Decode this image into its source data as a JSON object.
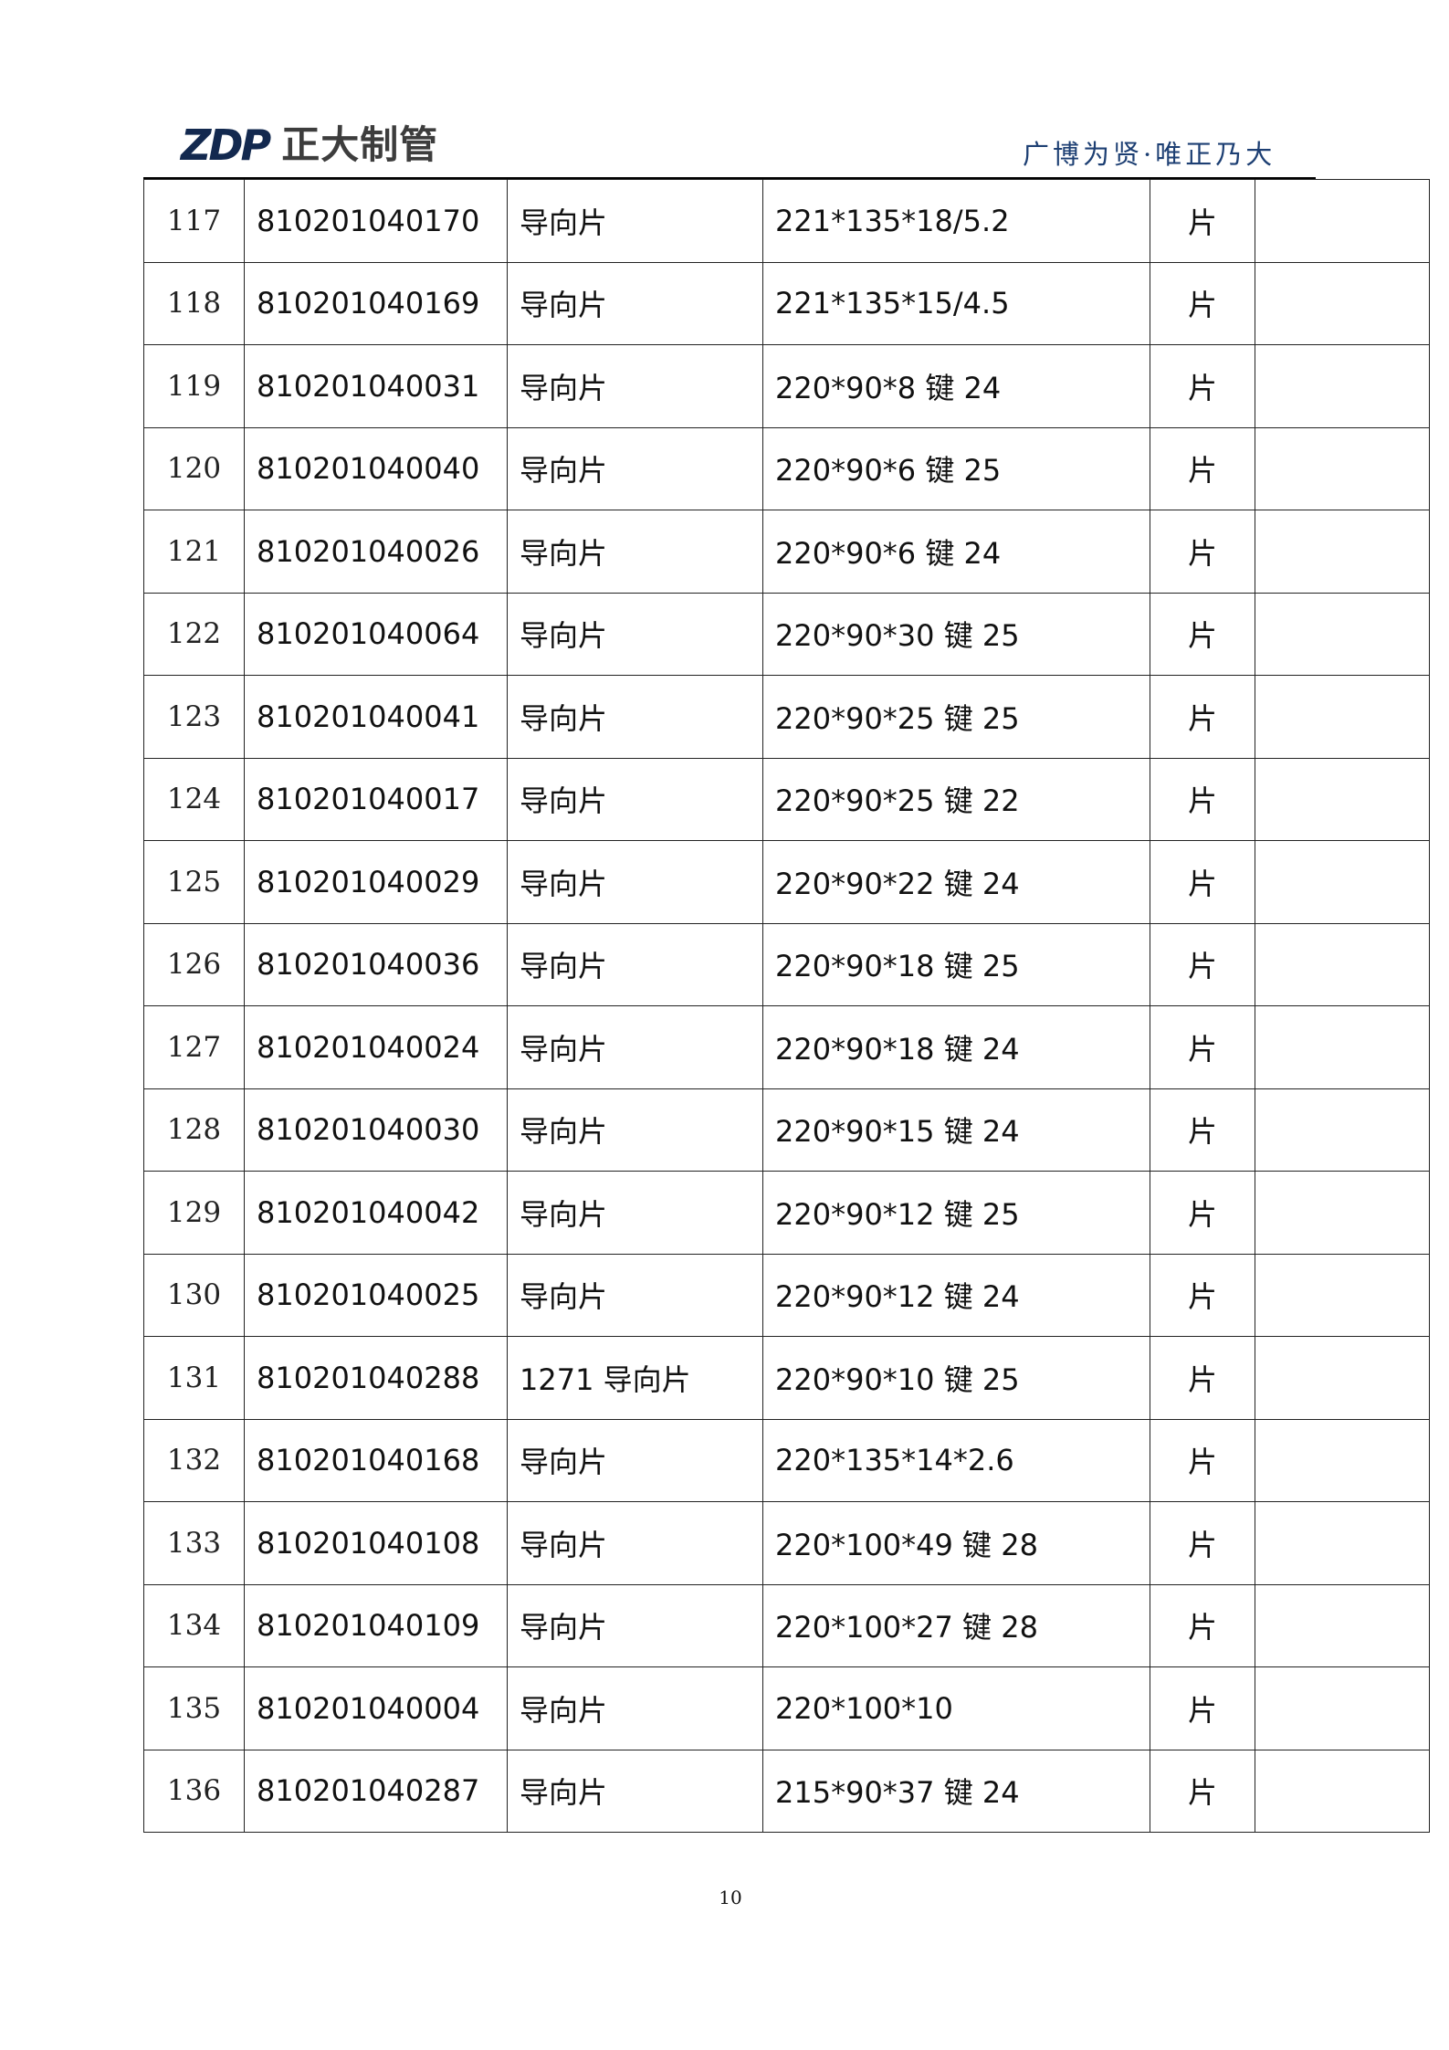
{
  "header": {
    "logo_mark": "ZDP",
    "logo_text": "正大制管",
    "slogan": "广博为贤·唯正乃大",
    "colors": {
      "logo_mark": "#13294f",
      "slogan": "#1d3f73"
    }
  },
  "rows": [
    {
      "no": "117",
      "code": "810201040170",
      "name": "导向片",
      "spec": "221*135*18/5.2",
      "unit": "片",
      "remark": ""
    },
    {
      "no": "118",
      "code": "810201040169",
      "name": "导向片",
      "spec": "221*135*15/4.5",
      "unit": "片",
      "remark": ""
    },
    {
      "no": "119",
      "code": "810201040031",
      "name": "导向片",
      "spec": "220*90*8 键 24",
      "unit": "片",
      "remark": ""
    },
    {
      "no": "120",
      "code": "810201040040",
      "name": "导向片",
      "spec": "220*90*6 键 25",
      "unit": "片",
      "remark": ""
    },
    {
      "no": "121",
      "code": "810201040026",
      "name": "导向片",
      "spec": "220*90*6 键 24",
      "unit": "片",
      "remark": ""
    },
    {
      "no": "122",
      "code": "810201040064",
      "name": "导向片",
      "spec": "220*90*30 键 25",
      "unit": "片",
      "remark": ""
    },
    {
      "no": "123",
      "code": "810201040041",
      "name": "导向片",
      "spec": "220*90*25 键 25",
      "unit": "片",
      "remark": ""
    },
    {
      "no": "124",
      "code": "810201040017",
      "name": "导向片",
      "spec": "220*90*25 键 22",
      "unit": "片",
      "remark": ""
    },
    {
      "no": "125",
      "code": "810201040029",
      "name": "导向片",
      "spec": "220*90*22 键 24",
      "unit": "片",
      "remark": ""
    },
    {
      "no": "126",
      "code": "810201040036",
      "name": "导向片",
      "spec": "220*90*18 键 25",
      "unit": "片",
      "remark": ""
    },
    {
      "no": "127",
      "code": "810201040024",
      "name": "导向片",
      "spec": "220*90*18 键 24",
      "unit": "片",
      "remark": ""
    },
    {
      "no": "128",
      "code": "810201040030",
      "name": "导向片",
      "spec": "220*90*15 键 24",
      "unit": "片",
      "remark": ""
    },
    {
      "no": "129",
      "code": "810201040042",
      "name": "导向片",
      "spec": "220*90*12 键 25",
      "unit": "片",
      "remark": ""
    },
    {
      "no": "130",
      "code": "810201040025",
      "name": "导向片",
      "spec": "220*90*12 键 24",
      "unit": "片",
      "remark": ""
    },
    {
      "no": "131",
      "code": "810201040288",
      "name": "1271 导向片",
      "spec": "220*90*10 键 25",
      "unit": "片",
      "remark": ""
    },
    {
      "no": "132",
      "code": "810201040168",
      "name": "导向片",
      "spec": "220*135*14*2.6",
      "unit": "片",
      "remark": ""
    },
    {
      "no": "133",
      "code": "810201040108",
      "name": "导向片",
      "spec": "220*100*49 键 28",
      "unit": "片",
      "remark": ""
    },
    {
      "no": "134",
      "code": "810201040109",
      "name": "导向片",
      "spec": "220*100*27 键 28",
      "unit": "片",
      "remark": ""
    },
    {
      "no": "135",
      "code": "810201040004",
      "name": "导向片",
      "spec": "220*100*10",
      "unit": "片",
      "remark": ""
    },
    {
      "no": "136",
      "code": "810201040287",
      "name": "导向片",
      "spec": "215*90*37 键 24",
      "unit": "片",
      "remark": ""
    }
  ],
  "footer": {
    "page_number": "10"
  }
}
